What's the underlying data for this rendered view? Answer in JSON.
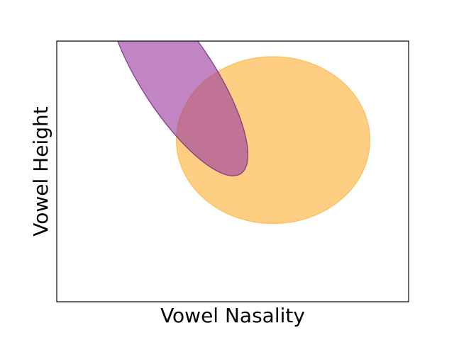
{
  "chart_data": {
    "type": "scatter",
    "title": "",
    "xlabel": "Vowel Nasality",
    "ylabel": "Vowel Height",
    "xticks": [],
    "yticks": [],
    "xlim": [
      0,
      10
    ],
    "ylim": [
      0,
      10
    ],
    "grid": false,
    "legend": false,
    "series": [
      {
        "kind": "ellipse",
        "center": [
          6.15,
          6.2
        ],
        "width": 5.5,
        "height": 6.4,
        "angle_deg": 0,
        "color": "#fdb94d",
        "alpha": 0.7,
        "edge_color": "#fdb94d"
      },
      {
        "kind": "ellipse",
        "center": [
          3.45,
          8.6
        ],
        "width": 2.1,
        "height": 8.8,
        "angle_deg": 33,
        "color": "#9b3d9e",
        "alpha": 0.63,
        "edge_color": "#7b2a7e"
      }
    ]
  }
}
